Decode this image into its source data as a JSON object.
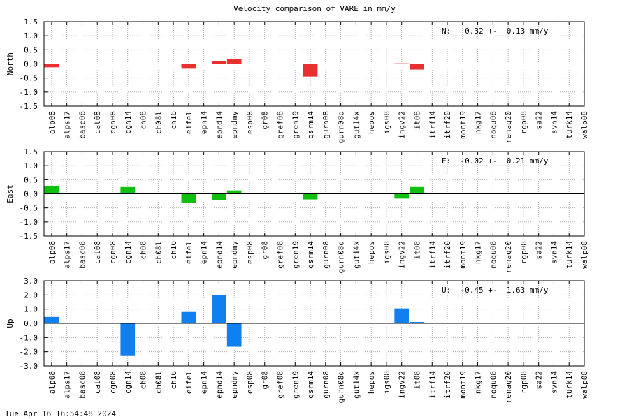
{
  "title": "Velocity comparison of VARE in mm/y",
  "timestamp": "Tue Apr 16 16:54:48 2024",
  "chart_data": [
    {
      "type": "bar",
      "ylabel": "North",
      "ylim": [
        -1.5,
        1.5
      ],
      "yticks": [
        -1.5,
        -1.0,
        -0.5,
        0.0,
        0.5,
        1.0,
        1.5
      ],
      "grid": true,
      "color": "#e83030",
      "stat_label": "N:   0.32 +-  0.13 mm/y",
      "categories": [
        "alp08",
        "alps17",
        "basc08",
        "cat08",
        "cgn08",
        "cgn14",
        "ch08",
        "ch08l",
        "ch16",
        "eifel",
        "epn14",
        "epnd14",
        "epndmy",
        "esp08",
        "gr08",
        "gref08",
        "gren19",
        "gsrm14",
        "gurn08",
        "gurn08d",
        "gut14x",
        "hepos",
        "igs08",
        "ingv22",
        "it08",
        "itrf14",
        "itrf20",
        "mont19",
        "nkg17",
        "noqu08",
        "renag20",
        "rgp08",
        "sa22",
        "svn14",
        "turk14",
        "walp08"
      ],
      "values": [
        -0.12,
        null,
        null,
        null,
        null,
        null,
        null,
        null,
        null,
        -0.17,
        null,
        0.1,
        0.18,
        null,
        null,
        null,
        null,
        -0.45,
        null,
        null,
        null,
        null,
        null,
        0.02,
        -0.2,
        null,
        null,
        null,
        null,
        null,
        null,
        null,
        null,
        null,
        null,
        null
      ]
    },
    {
      "type": "bar",
      "ylabel": "East",
      "ylim": [
        -1.5,
        1.5
      ],
      "yticks": [
        -1.5,
        -1.0,
        -0.5,
        0.0,
        0.5,
        1.0,
        1.5
      ],
      "grid": true,
      "color": "#10c010",
      "stat_label": "E:  -0.02 +-  0.21 mm/y",
      "categories": [
        "alp08",
        "alps17",
        "basc08",
        "cat08",
        "cgn08",
        "cgn14",
        "ch08",
        "ch08l",
        "ch16",
        "eifel",
        "epn14",
        "epnd14",
        "epndmy",
        "esp08",
        "gr08",
        "gref08",
        "gren19",
        "gsrm14",
        "gurn08",
        "gurn08d",
        "gut14x",
        "hepos",
        "igs08",
        "ingv22",
        "it08",
        "itrf14",
        "itrf20",
        "mont19",
        "nkg17",
        "noqu08",
        "renag20",
        "rgp08",
        "sa22",
        "svn14",
        "turk14",
        "walp08"
      ],
      "values": [
        0.27,
        null,
        null,
        null,
        null,
        0.24,
        null,
        null,
        null,
        -0.33,
        null,
        -0.22,
        0.12,
        null,
        null,
        null,
        null,
        -0.2,
        null,
        null,
        null,
        null,
        null,
        -0.17,
        0.24,
        null,
        null,
        null,
        null,
        null,
        null,
        null,
        null,
        null,
        null,
        null
      ]
    },
    {
      "type": "bar",
      "ylabel": "Up",
      "ylim": [
        -3.0,
        3.0
      ],
      "yticks": [
        -3.0,
        -2.0,
        -1.0,
        0.0,
        1.0,
        2.0,
        3.0
      ],
      "grid": true,
      "color": "#1080f0",
      "stat_label": "U:  -0.45 +-  1.63 mm/y",
      "categories": [
        "alp08",
        "alps17",
        "basc08",
        "cat08",
        "cgn08",
        "cgn14",
        "ch08",
        "ch08l",
        "ch16",
        "eifel",
        "epn14",
        "epnd14",
        "epndmy",
        "esp08",
        "gr08",
        "gref08",
        "gren19",
        "gsrm14",
        "gurn08",
        "gurn08d",
        "gut14x",
        "hepos",
        "igs08",
        "ingv22",
        "it08",
        "itrf14",
        "itrf20",
        "mont19",
        "nkg17",
        "noqu08",
        "renag20",
        "rgp08",
        "sa22",
        "svn14",
        "turk14",
        "walp08"
      ],
      "values": [
        0.45,
        null,
        null,
        null,
        null,
        -2.3,
        null,
        null,
        null,
        0.8,
        null,
        2.0,
        -1.65,
        null,
        null,
        null,
        null,
        null,
        null,
        null,
        null,
        null,
        null,
        1.05,
        0.1,
        null,
        null,
        null,
        null,
        null,
        null,
        null,
        null,
        null,
        null,
        null
      ]
    }
  ]
}
